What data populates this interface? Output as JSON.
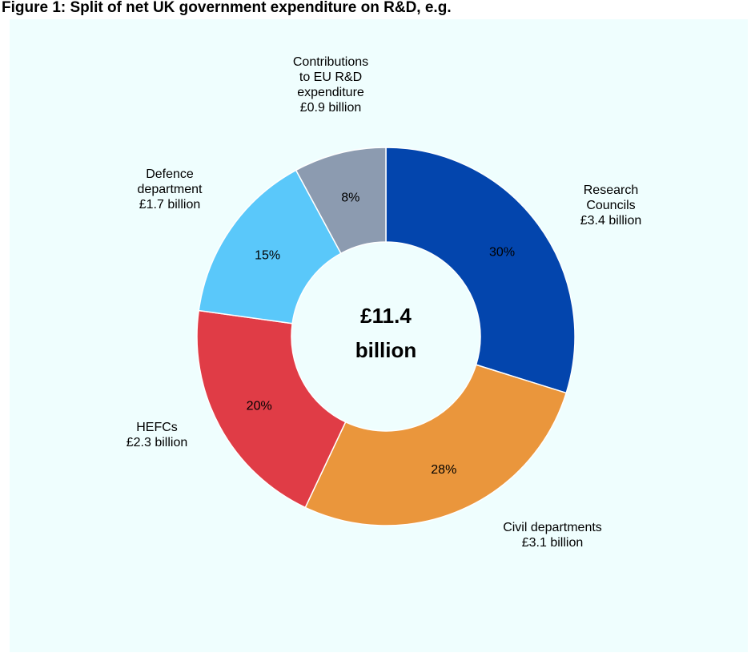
{
  "title": "Figure 1: Split of net UK government expenditure on R&D, e.g.",
  "chart_data": {
    "type": "donut",
    "center_label": [
      "£11.4",
      "billion"
    ],
    "segments": [
      {
        "name": "Research Councils",
        "label_lines": [
          "Research",
          "Councils"
        ],
        "value_text": "£3.4 billion",
        "value": 3.4,
        "percent_label": "30%",
        "color": "#0345ad"
      },
      {
        "name": "Civil departments",
        "label_lines": [
          "Civil departments"
        ],
        "value_text": "£3.1 billion",
        "value": 3.1,
        "percent_label": "28%",
        "color": "#ea963c"
      },
      {
        "name": "HEFCs",
        "label_lines": [
          "HEFCs"
        ],
        "value_text": "£2.3 billion",
        "value": 2.3,
        "percent_label": "20%",
        "color": "#e03c46"
      },
      {
        "name": "Defence department",
        "label_lines": [
          "Defence",
          "department"
        ],
        "value_text": "£1.7 billion",
        "value": 1.7,
        "percent_label": "15%",
        "color": "#5ac8fa"
      },
      {
        "name": "Contributions to EU R&D expenditure",
        "label_lines": [
          "Contributions",
          "to EU R&D",
          "expenditure"
        ],
        "value_text": "£0.9 billion",
        "value": 0.9,
        "percent_label": "8%",
        "color": "#8c9bb0"
      }
    ]
  }
}
